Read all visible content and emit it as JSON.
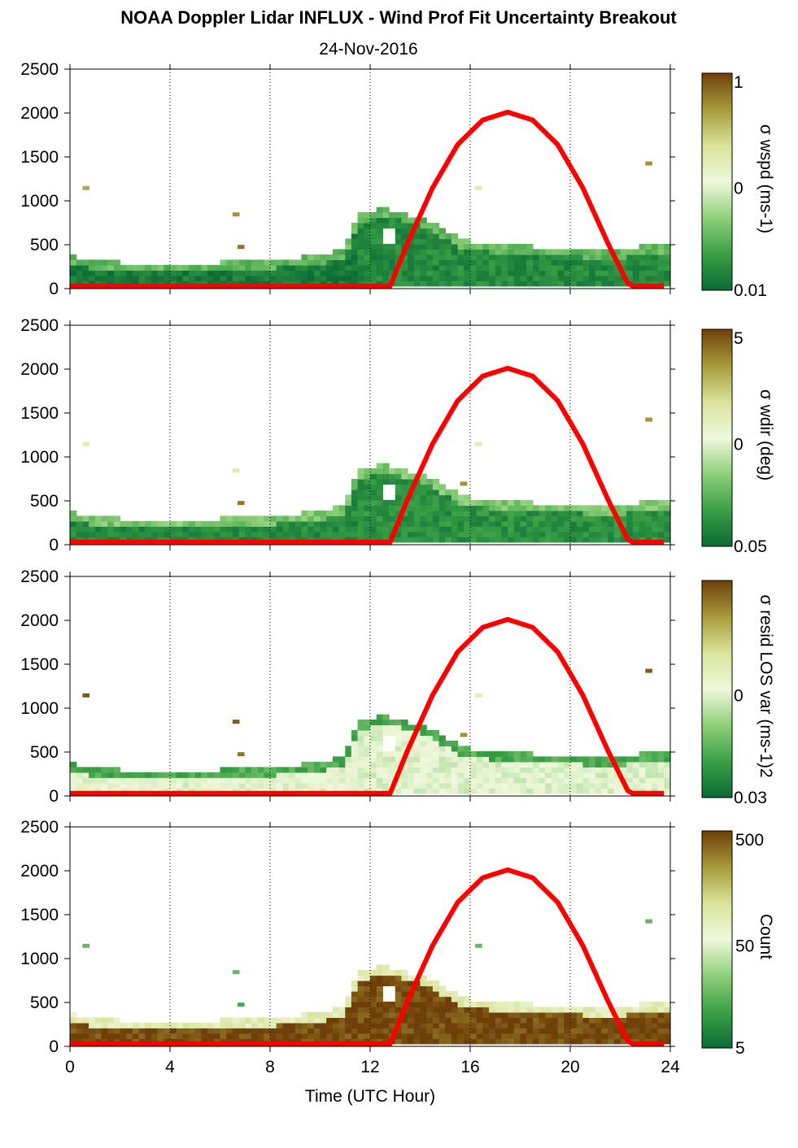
{
  "figure": {
    "title": "NOAA Doppler Lidar INFLUX - Wind Prof Fit Uncertainty Breakout",
    "subtitle": "24-Nov-2016",
    "xlabel": "Time (UTC Hour)"
  },
  "colors": {
    "scale": [
      "#0b6b34",
      "#3aa046",
      "#8fd07a",
      "#eef8dc",
      "#d9e39a",
      "#a89a3a",
      "#6e3f08"
    ],
    "no_data": "#ffffff",
    "sun_curve": "#ff0000"
  },
  "chart_data": [
    {
      "type": "heatmap",
      "panel": "wspd",
      "colorbar_label": "σ wspd (ms-1)",
      "colorbar_ticks": [
        "1",
        "0",
        "0.01"
      ],
      "xlim": [
        0,
        24
      ],
      "ylim": [
        0,
        2500
      ],
      "x_ticks": [
        "0",
        "4",
        "8",
        "12",
        "16",
        "20",
        "24"
      ],
      "y_ticks": [
        "0",
        "500",
        "1000",
        "1500",
        "2000",
        "2500"
      ],
      "grid": "dotted vertical at 4, 8, 12, 16, 20, 24",
      "base_level": 0.05,
      "plume_level": 0.1,
      "top_fringe_level": 0.25,
      "outliers": [
        [
          0.5,
          1150,
          0.8
        ],
        [
          6.5,
          850,
          0.85
        ],
        [
          6.7,
          480,
          0.9
        ],
        [
          23.0,
          1430,
          0.85
        ],
        [
          16.2,
          1150,
          0.6
        ]
      ]
    },
    {
      "type": "heatmap",
      "panel": "wdir",
      "colorbar_label": "σ wdir (deg)",
      "colorbar_ticks": [
        "5",
        "0",
        "0.05"
      ],
      "xlim": [
        0,
        24
      ],
      "ylim": [
        0,
        2500
      ],
      "x_ticks": [
        "0",
        "4",
        "8",
        "12",
        "16",
        "20",
        "24"
      ],
      "y_ticks": [
        "0",
        "500",
        "1000",
        "1500",
        "2000",
        "2500"
      ],
      "base_level": 0.1,
      "plume_level": 0.12,
      "top_fringe_level": 0.3,
      "outliers": [
        [
          0.5,
          1150,
          0.6
        ],
        [
          6.5,
          850,
          0.62
        ],
        [
          6.7,
          480,
          0.9
        ],
        [
          23.0,
          1430,
          0.85
        ],
        [
          16.2,
          1150,
          0.6
        ],
        [
          15.6,
          700,
          0.85
        ]
      ]
    },
    {
      "type": "heatmap",
      "panel": "resid",
      "colorbar_label": "σ resid LOS var (ms-1)2",
      "colorbar_ticks": [
        "0",
        "0.03"
      ],
      "xlim": [
        0,
        24
      ],
      "ylim": [
        0,
        2500
      ],
      "x_ticks": [
        "0",
        "4",
        "8",
        "12",
        "16",
        "20",
        "24"
      ],
      "y_ticks": [
        "0",
        "500",
        "1000",
        "1500",
        "2000",
        "2500"
      ],
      "base_level": 0.5,
      "plume_level": 0.48,
      "top_fringe_level": 0.2,
      "outliers": [
        [
          0.5,
          1150,
          0.95
        ],
        [
          6.5,
          850,
          0.95
        ],
        [
          6.7,
          480,
          0.9
        ],
        [
          23.0,
          1430,
          0.95
        ],
        [
          16.2,
          1150,
          0.6
        ],
        [
          15.6,
          700,
          0.85
        ]
      ]
    },
    {
      "type": "heatmap",
      "panel": "count",
      "colorbar_label": "Count",
      "colorbar_ticks": [
        "500",
        "50",
        "5"
      ],
      "xlim": [
        0,
        24
      ],
      "ylim": [
        0,
        2500
      ],
      "x_ticks": [
        "0",
        "4",
        "8",
        "12",
        "16",
        "20",
        "24"
      ],
      "y_ticks": [
        "0",
        "500",
        "1000",
        "1500",
        "2000",
        "2500"
      ],
      "base_level": 0.98,
      "plume_level": 0.98,
      "top_fringe_level": 0.6,
      "outliers": [
        [
          0.5,
          1150,
          0.25
        ],
        [
          6.5,
          850,
          0.25
        ],
        [
          6.7,
          480,
          0.2
        ],
        [
          23.0,
          1430,
          0.25
        ],
        [
          16.2,
          1150,
          0.25
        ]
      ]
    }
  ],
  "boundary_layer_top": {
    "hours": [
      0,
      1,
      2,
      3,
      4,
      5,
      6,
      7,
      8,
      9,
      10,
      11,
      11.5,
      12,
      12.5,
      13,
      13.5,
      14,
      14.5,
      15,
      15.5,
      16,
      17,
      18,
      19,
      20,
      21,
      22,
      23,
      23.8
    ],
    "heights": [
      340,
      300,
      270,
      260,
      250,
      260,
      270,
      280,
      300,
      320,
      350,
      420,
      800,
      860,
      880,
      860,
      820,
      780,
      720,
      640,
      560,
      500,
      480,
      460,
      440,
      430,
      420,
      420,
      460,
      480
    ]
  },
  "sun_elevation_curve": {
    "description_levels": "red curve plotted on height axis",
    "hours": [
      0,
      12.8,
      13.5,
      14.5,
      15.5,
      16.5,
      17.5,
      18.5,
      19.5,
      20.5,
      21.5,
      22.3,
      22.5,
      24
    ],
    "heights": [
      30,
      30,
      520,
      1150,
      1640,
      1920,
      2010,
      1920,
      1640,
      1150,
      520,
      60,
      30,
      30
    ]
  }
}
